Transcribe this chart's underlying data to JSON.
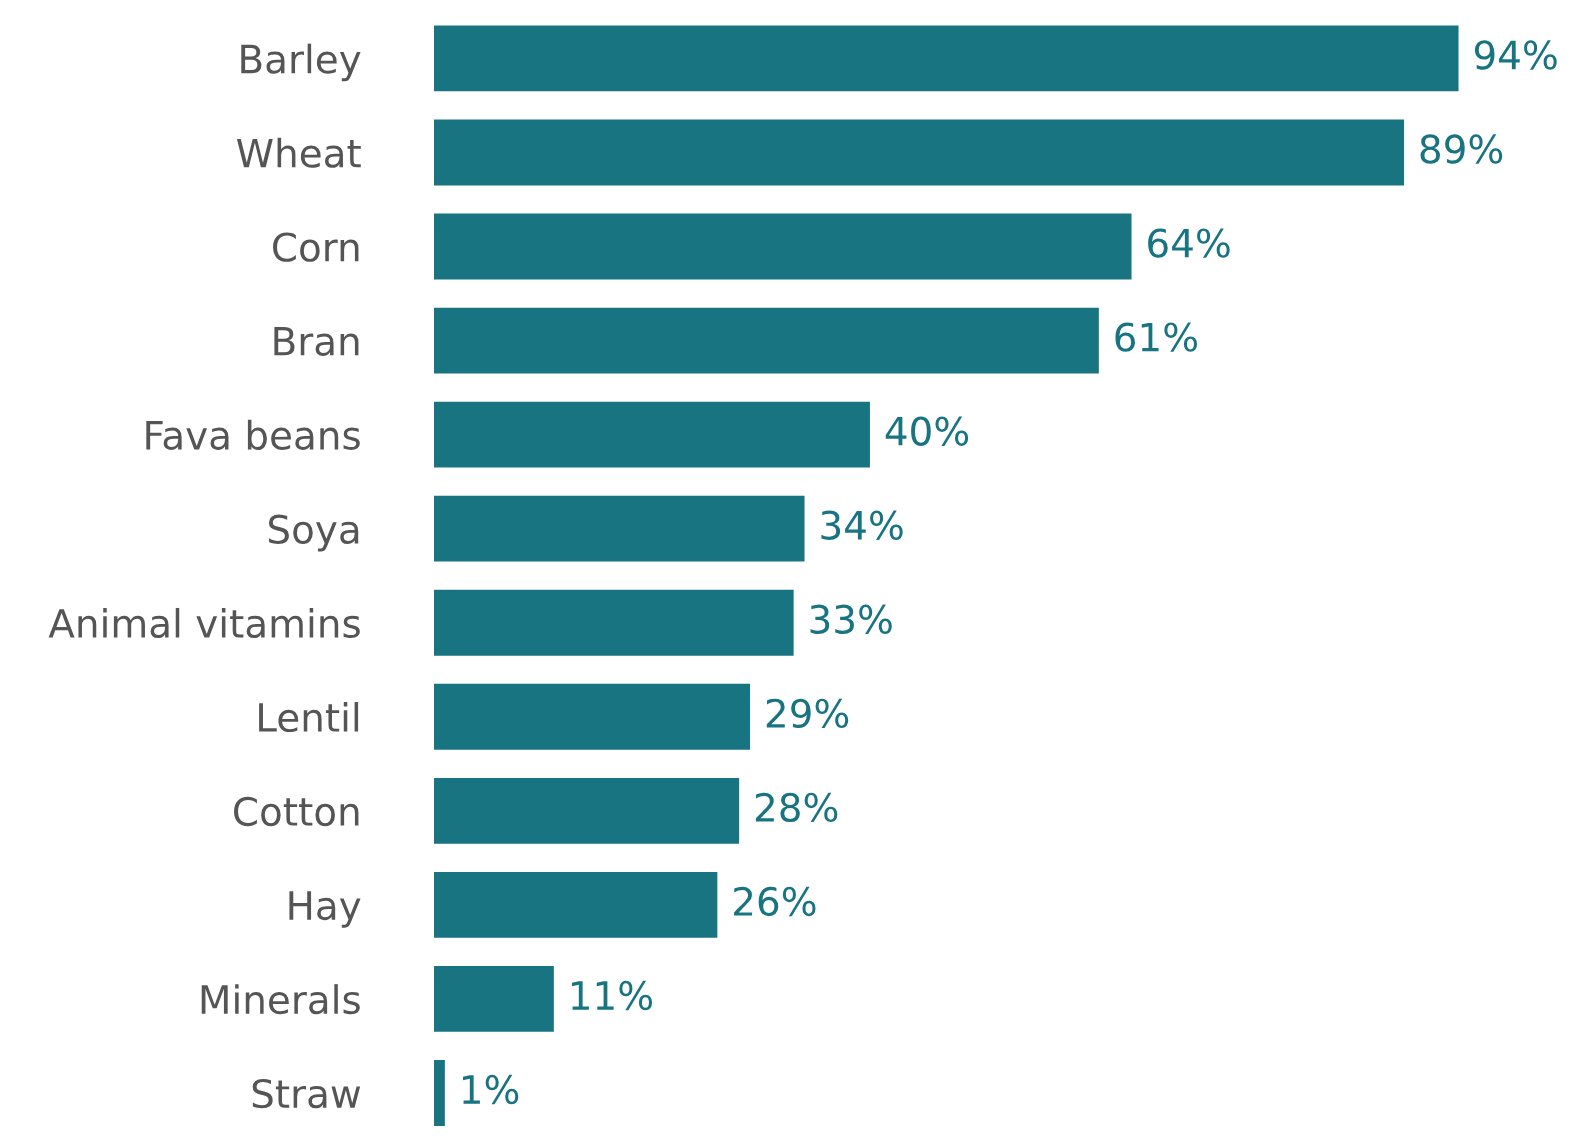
{
  "chart_data": {
    "type": "bar",
    "orientation": "horizontal",
    "categories": [
      "Barley",
      "Wheat",
      "Corn",
      "Bran",
      "Fava beans",
      "Soya",
      "Animal vitamins",
      "Lentil",
      "Cotton",
      "Hay",
      "Minerals",
      "Straw"
    ],
    "values": [
      94,
      89,
      64,
      61,
      40,
      34,
      33,
      29,
      28,
      26,
      11,
      1
    ],
    "value_labels": [
      "94%",
      "89%",
      "64%",
      "61%",
      "40%",
      "34%",
      "33%",
      "29%",
      "28%",
      "26%",
      "11%",
      "1%"
    ],
    "color": "#187481",
    "grid": false,
    "legend": false
  }
}
